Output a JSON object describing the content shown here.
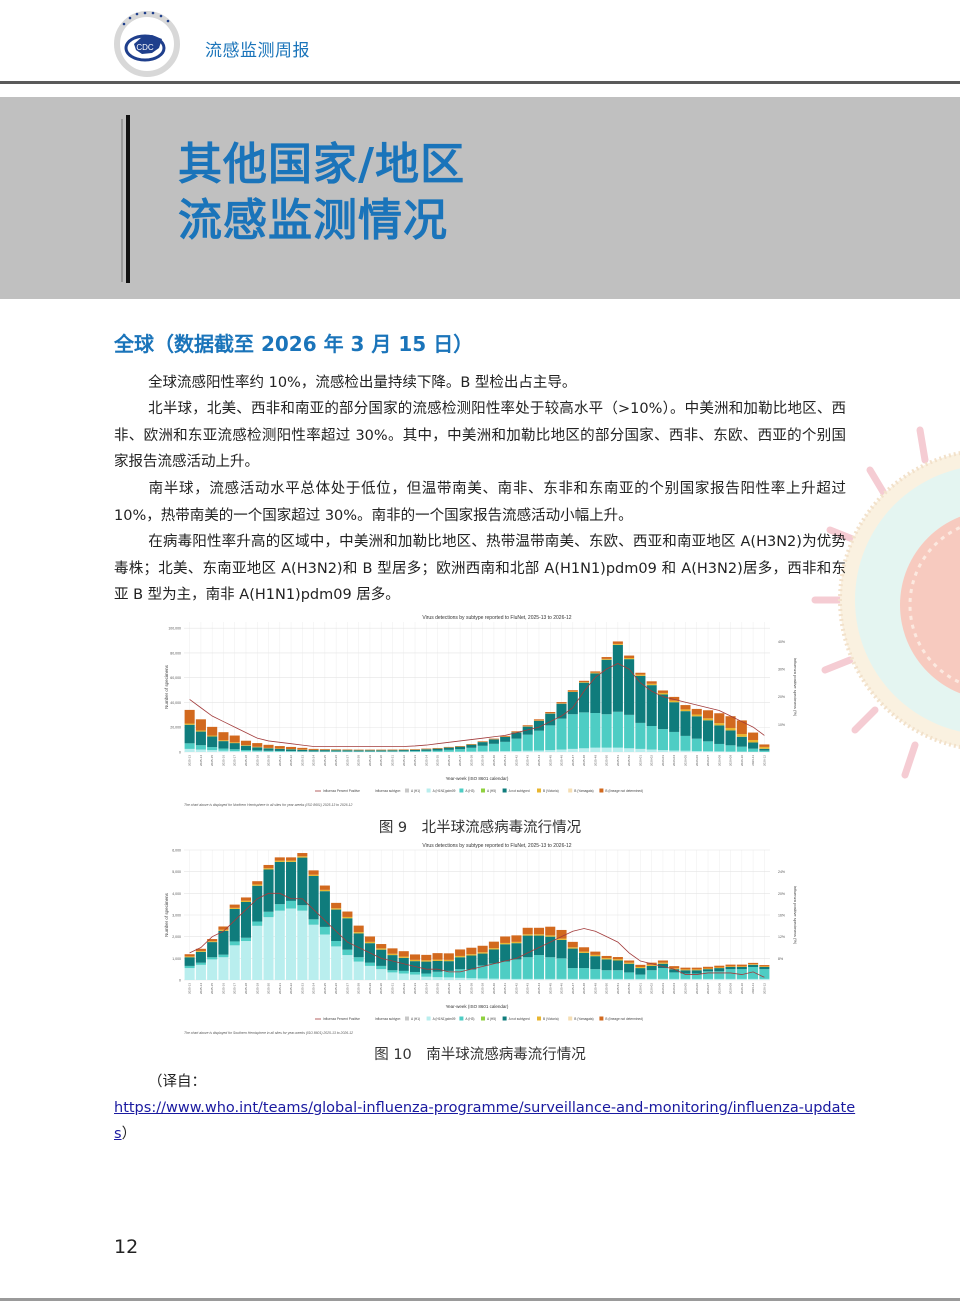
{
  "header": {
    "title": "流感监测周报",
    "logo_text": "CDC"
  },
  "banner": {
    "line1": "其他国家/地区",
    "line2": "流感监测情况"
  },
  "section": {
    "title": "全球（数据截至 2026 年 3 月 15 日）",
    "paragraphs": [
      "全球流感阳性率约 10%，流感检出量持续下降。B 型检出占主导。",
      "北半球，北美、西非和南亚的部分国家的流感检测阳性率处于较高水平（>10%）。中美洲和加勒比地区、西非、欧洲和东亚流感检测阳性率超过 30%。其中，中美洲和加勒比地区的部分国家、西非、东欧、西亚的个别国家报告流感活动上升。",
      "南半球，流感活动水平总体处于低位，但温带南美、南非、东非和东南亚的个别国家报告阳性率上升超过 10%，热带南美的一个国家超过 30%。南非的一个国家报告流感活动小幅上升。",
      "在病毒阳性率升高的区域中，中美洲和加勒比地区、热带温带南美、东欧、西亚和南亚地区 A(H3N2)为优势毒株；北美、东南亚地区 A(H3N2)和 B 型居多；欧洲西南和北部 A(H1N1)pdm09 和 A(H3N2)居多，西非和东亚 B 型为主，南非 A(H1N1)pdm09 居多。"
    ]
  },
  "figures": {
    "fig9_caption": "图 9　北半球流感病毒流行情况",
    "fig10_caption": "图 10　南半球流感病毒流行情况"
  },
  "citation": {
    "prefix": "（译自：",
    "url": "https://www.who.int/teams/global-influenza-programme/surveillance-and-monitoring/influenza-updates",
    "suffix": "）"
  },
  "page_number": "12",
  "legend": {
    "line_label": "Influenza Percent Positive",
    "subtype_label": "Influenza subtype:",
    "items": [
      {
        "label": "A (H1)",
        "color": "#c8c8c8"
      },
      {
        "label": "A (H1N1)pdm09",
        "color": "#b9eeee"
      },
      {
        "label": "A (H3)",
        "color": "#4ecdc4"
      },
      {
        "label": "A (H5)",
        "color": "#8fd13f"
      },
      {
        "label": "A not subtyped",
        "color": "#0f7c7c"
      },
      {
        "label": "B (Victoria)",
        "color": "#e8b630"
      },
      {
        "label": "B (Yamagata)",
        "color": "#f5deb3"
      },
      {
        "label": "B (lineage not determined)",
        "color": "#d2691e"
      }
    ]
  },
  "chart_data": [
    {
      "type": "bar",
      "stacked": true,
      "title": "Virus detections by subtype reported to FluNet, 2025-13 to 2026-12",
      "xlabel": "Year-week (ISO 8601 calendar)",
      "ylabel": "Number of specimens",
      "y2label": "Influenza positive specimens (%)",
      "ylim": [
        0,
        105000
      ],
      "yticks": [
        0,
        20000,
        40000,
        60000,
        80000,
        100000
      ],
      "ytick_labels": [
        "0",
        "20,000",
        "40,000",
        "60,000",
        "80,000",
        "100,000"
      ],
      "y2lim": [
        0,
        47
      ],
      "y2ticks": [
        10,
        20,
        30,
        40
      ],
      "y2tick_labels": [
        "10%",
        "20%",
        "30%",
        "40%"
      ],
      "footnote": "The chart above is displayed for Northern Hemisphere in all sites for year-weeks (ISO 8601) 2025-13 to 2026-12",
      "categories": [
        "2025-13",
        "2025-14",
        "2025-15",
        "2025-16",
        "2025-17",
        "2025-18",
        "2025-19",
        "2025-20",
        "2025-21",
        "2025-22",
        "2025-23",
        "2025-24",
        "2025-25",
        "2025-26",
        "2025-27",
        "2025-28",
        "2025-29",
        "2025-30",
        "2025-31",
        "2025-32",
        "2025-33",
        "2025-34",
        "2025-35",
        "2025-36",
        "2025-37",
        "2025-38",
        "2025-39",
        "2025-40",
        "2025-41",
        "2025-42",
        "2025-43",
        "2025-44",
        "2025-45",
        "2025-46",
        "2025-47",
        "2025-48",
        "2025-49",
        "2025-50",
        "2025-51",
        "2025-52",
        "2026-01",
        "2026-02",
        "2026-03",
        "2026-04",
        "2026-05",
        "2026-06",
        "2026-07",
        "2026-08",
        "2026-09",
        "2026-10",
        "2026-11",
        "2026-12"
      ],
      "series": [
        {
          "name": "A (H1N1)pdm09",
          "values": [
            2500,
            2000,
            1500,
            1000,
            800,
            600,
            500,
            400,
            350,
            300,
            250,
            200,
            200,
            200,
            200,
            200,
            200,
            200,
            200,
            200,
            200,
            200,
            200,
            250,
            300,
            400,
            500,
            600,
            700,
            800,
            1000,
            1200,
            1500,
            2000,
            2500,
            3000,
            3500,
            3500,
            3500,
            3000,
            2500,
            2000,
            1500,
            1200,
            1000,
            800,
            600,
            500,
            400,
            300,
            200,
            100
          ]
        },
        {
          "name": "A (H3)",
          "values": [
            4500,
            3500,
            2500,
            1800,
            1400,
            1000,
            800,
            600,
            500,
            400,
            300,
            250,
            250,
            250,
            250,
            250,
            250,
            250,
            300,
            350,
            450,
            700,
            1000,
            1500,
            2000,
            3000,
            4500,
            6000,
            7500,
            10000,
            13000,
            16000,
            20000,
            25000,
            28000,
            29000,
            28000,
            27000,
            29000,
            27000,
            21000,
            19000,
            17000,
            15000,
            12000,
            10000,
            8000,
            6000,
            5000,
            4000,
            2500,
            1000
          ]
        },
        {
          "name": "A not subtyped",
          "values": [
            15000,
            11000,
            8500,
            6000,
            5000,
            3500,
            2500,
            2000,
            1700,
            1500,
            1200,
            1100,
            1100,
            1000,
            1000,
            900,
            900,
            900,
            900,
            1000,
            1100,
            1300,
            1500,
            1800,
            2000,
            2500,
            3000,
            3500,
            4000,
            5000,
            6500,
            8000,
            9500,
            12000,
            18000,
            24000,
            32000,
            44000,
            54000,
            45000,
            38000,
            33000,
            28000,
            24000,
            20000,
            18000,
            17000,
            15000,
            12000,
            8000,
            5000,
            1500
          ]
        },
        {
          "name": "B (Victoria)",
          "values": [
            1000,
            900,
            800,
            700,
            600,
            500,
            400,
            300,
            250,
            200,
            200,
            150,
            150,
            150,
            150,
            150,
            150,
            150,
            150,
            150,
            150,
            150,
            150,
            150,
            150,
            150,
            150,
            200,
            200,
            200,
            300,
            300,
            300,
            300,
            400,
            500,
            600,
            700,
            800,
            900,
            1000,
            1100,
            1200,
            1300,
            1400,
            1500,
            1600,
            1800,
            2000,
            2200,
            2000,
            1500
          ]
        },
        {
          "name": "B (lineage not determined)",
          "values": [
            11000,
            9000,
            7000,
            6500,
            5500,
            3500,
            3000,
            2500,
            2000,
            1700,
            1400,
            800,
            600,
            500,
            400,
            400,
            400,
            400,
            400,
            400,
            400,
            400,
            400,
            400,
            400,
            400,
            500,
            500,
            600,
            700,
            800,
            900,
            1000,
            1000,
            1000,
            1000,
            1000,
            1500,
            2000,
            2000,
            1500,
            2000,
            2000,
            3000,
            3500,
            4500,
            6500,
            8000,
            9500,
            11000,
            6000,
            2000
          ]
        }
      ],
      "line": {
        "name": "Influenza Percent Positive",
        "values": [
          19,
          16,
          13,
          11,
          9,
          7,
          5,
          4,
          3.5,
          3,
          2.5,
          2,
          2,
          2,
          2,
          2,
          2,
          2,
          2,
          2,
          2.2,
          2.5,
          3,
          3.5,
          4,
          4.5,
          5,
          5.5,
          6,
          7,
          8,
          9,
          11,
          13,
          16,
          22,
          27,
          30,
          32,
          30,
          25,
          22,
          20,
          19,
          18,
          17,
          16,
          15,
          13,
          11,
          9,
          6
        ]
      }
    },
    {
      "type": "bar",
      "stacked": true,
      "title": "Virus detections by subtype reported to FluNet, 2025-13 to 2026-12",
      "xlabel": "Year-week (ISO 8601 calendar)",
      "ylabel": "Number of specimens",
      "y2label": "Influenza positive specimens (%)",
      "ylim": [
        0,
        6000
      ],
      "yticks": [
        0,
        1000,
        2000,
        3000,
        4000,
        5000,
        6000
      ],
      "ytick_labels": [
        "0",
        "1,000",
        "2,000",
        "3,000",
        "4,000",
        "5,000",
        "6,000"
      ],
      "y2lim": [
        4,
        28
      ],
      "y2ticks": [
        8,
        12,
        16,
        20,
        24
      ],
      "y2tick_labels": [
        "8%",
        "12%",
        "16%",
        "20%",
        "24%"
      ],
      "footnote": "The chart above is displayed for Southern Hemisphere in all sites for year-weeks (ISO 8601) 2025-13 to 2026-12",
      "categories": [
        "2025-13",
        "2025-14",
        "2025-15",
        "2025-16",
        "2025-17",
        "2025-18",
        "2025-19",
        "2025-20",
        "2025-21",
        "2025-22",
        "2025-23",
        "2025-24",
        "2025-25",
        "2025-26",
        "2025-27",
        "2025-28",
        "2025-29",
        "2025-30",
        "2025-31",
        "2025-32",
        "2025-33",
        "2025-34",
        "2025-35",
        "2025-36",
        "2025-37",
        "2025-38",
        "2025-39",
        "2025-40",
        "2025-41",
        "2025-42",
        "2025-43",
        "2025-44",
        "2025-45",
        "2025-46",
        "2025-47",
        "2025-48",
        "2025-49",
        "2025-50",
        "2025-51",
        "2025-52",
        "2026-01",
        "2026-02",
        "2026-03",
        "2026-04",
        "2026-05",
        "2026-06",
        "2026-07",
        "2026-08",
        "2026-09",
        "2026-10",
        "2026-11",
        "2026-12"
      ],
      "series": [
        {
          "name": "A (H1N1)pdm09",
          "values": [
            550,
            700,
            950,
            1050,
            1600,
            1800,
            2500,
            2900,
            3200,
            3300,
            3200,
            2550,
            2100,
            1550,
            1150,
            850,
            650,
            500,
            350,
            300,
            250,
            150,
            130,
            120,
            100,
            80,
            70,
            60,
            50,
            50,
            50,
            50,
            50,
            50,
            50,
            50,
            50,
            50,
            50,
            50,
            50,
            50,
            50,
            50,
            50,
            50,
            50,
            50,
            50,
            50,
            50,
            50
          ]
        },
        {
          "name": "A (H3)",
          "values": [
            100,
            100,
            100,
            120,
            180,
            150,
            200,
            250,
            300,
            350,
            250,
            250,
            350,
            250,
            250,
            200,
            150,
            150,
            100,
            120,
            120,
            150,
            250,
            300,
            400,
            400,
            600,
            700,
            800,
            900,
            1000,
            1100,
            1000,
            950,
            500,
            500,
            450,
            400,
            400,
            300,
            200,
            400,
            500,
            300,
            250,
            250,
            350,
            350,
            450,
            450,
            550,
            450
          ]
        },
        {
          "name": "A not subtyped",
          "values": [
            400,
            500,
            700,
            1100,
            1500,
            1650,
            1650,
            1950,
            1950,
            1800,
            2200,
            2000,
            1650,
            1450,
            1450,
            1100,
            900,
            750,
            700,
            600,
            500,
            550,
            500,
            450,
            550,
            650,
            550,
            650,
            800,
            750,
            1000,
            900,
            950,
            850,
            900,
            700,
            600,
            500,
            450,
            400,
            300,
            200,
            200,
            150,
            150,
            150,
            100,
            150,
            100,
            100,
            100,
            100
          ]
        },
        {
          "name": "B (Victoria)",
          "values": [
            40,
            40,
            40,
            50,
            50,
            60,
            60,
            60,
            60,
            60,
            60,
            60,
            60,
            60,
            60,
            60,
            60,
            60,
            60,
            60,
            60,
            60,
            60,
            60,
            60,
            60,
            60,
            60,
            60,
            60,
            60,
            60,
            60,
            60,
            60,
            60,
            60,
            60,
            60,
            50,
            50,
            50,
            50,
            40,
            40,
            40,
            30,
            30,
            30,
            30,
            30,
            30
          ]
        },
        {
          "name": "B (lineage not determined)",
          "values": [
            100,
            100,
            100,
            150,
            150,
            150,
            150,
            150,
            150,
            150,
            150,
            200,
            200,
            250,
            250,
            300,
            250,
            200,
            250,
            250,
            250,
            250,
            300,
            300,
            300,
            300,
            300,
            300,
            300,
            300,
            300,
            300,
            400,
            400,
            250,
            200,
            150,
            100,
            100,
            100,
            100,
            100,
            100,
            100,
            80,
            80,
            80,
            80,
            80,
            80,
            60,
            60
          ]
        }
      ],
      "line": {
        "name": "Influenza Percent Positive",
        "values": [
          9,
          10,
          12,
          13,
          15,
          17,
          19,
          20,
          20,
          19,
          19,
          17,
          15,
          13,
          11,
          10,
          9,
          8,
          7.5,
          7,
          6.5,
          6,
          6,
          5.5,
          5.5,
          6,
          6.5,
          7,
          7.5,
          8,
          9,
          10,
          11,
          12,
          13,
          13.5,
          13,
          12,
          11,
          9,
          7.5,
          7,
          6.5,
          6,
          5,
          5,
          5.3,
          5.3,
          5.3,
          5,
          5.5,
          4.5
        ]
      }
    }
  ]
}
